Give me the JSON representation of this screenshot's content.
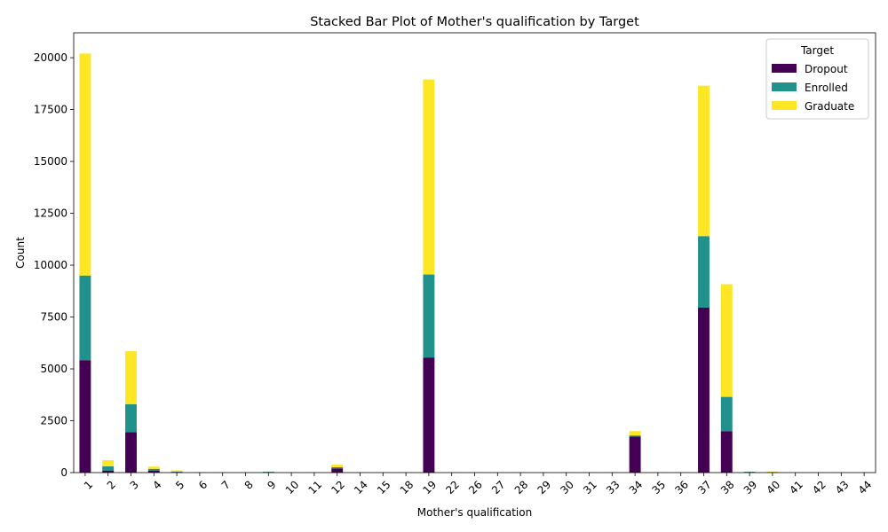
{
  "chart_data": {
    "type": "bar",
    "stacked": true,
    "title": "Stacked Bar Plot of Mother's qualification by Target",
    "xlabel": "Mother's qualification",
    "ylabel": "Count",
    "ylim": [
      0,
      21200
    ],
    "yticks": [
      0,
      2500,
      5000,
      7500,
      10000,
      12500,
      15000,
      17500,
      20000
    ],
    "legend": {
      "title": "Target",
      "position": "top-right"
    },
    "categories": [
      "1",
      "2",
      "3",
      "4",
      "5",
      "6",
      "7",
      "8",
      "9",
      "10",
      "11",
      "12",
      "14",
      "15",
      "18",
      "19",
      "22",
      "26",
      "27",
      "28",
      "29",
      "30",
      "31",
      "33",
      "34",
      "35",
      "36",
      "37",
      "38",
      "39",
      "40",
      "41",
      "42",
      "43",
      "44"
    ],
    "series": [
      {
        "name": "Dropout",
        "color": "#440154",
        "values": [
          5420,
          100,
          1950,
          100,
          30,
          5,
          0,
          0,
          10,
          0,
          0,
          200,
          0,
          0,
          0,
          5550,
          0,
          0,
          0,
          0,
          0,
          0,
          0,
          0,
          1730,
          0,
          0,
          7950,
          2000,
          10,
          10,
          0,
          0,
          0,
          0
        ]
      },
      {
        "name": "Enrolled",
        "color": "#21918c",
        "values": [
          4080,
          200,
          1350,
          80,
          20,
          5,
          0,
          0,
          30,
          0,
          0,
          60,
          0,
          0,
          0,
          4000,
          0,
          0,
          0,
          0,
          0,
          0,
          0,
          0,
          60,
          0,
          0,
          3450,
          1650,
          30,
          10,
          0,
          0,
          0,
          0
        ]
      },
      {
        "name": "Graduate",
        "color": "#fde725",
        "values": [
          10700,
          300,
          2550,
          110,
          60,
          5,
          5,
          5,
          10,
          5,
          5,
          120,
          5,
          5,
          5,
          9400,
          5,
          5,
          5,
          5,
          5,
          5,
          5,
          5,
          210,
          5,
          5,
          7250,
          5430,
          10,
          30,
          5,
          5,
          5,
          5
        ]
      }
    ]
  }
}
